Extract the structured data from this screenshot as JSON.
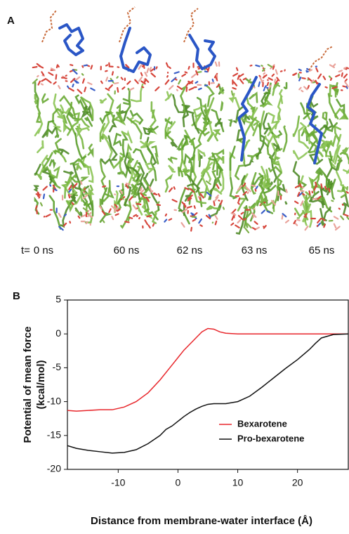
{
  "panel_a": {
    "label": "A",
    "time_prefix": "t=",
    "times": [
      "0 ns",
      "60 ns",
      "62 ns",
      "63 ns",
      "65 ns"
    ]
  },
  "chart_data": {
    "type": "line",
    "panel_label": "B",
    "xlabel": "Distance from membrane-water interface (Å)",
    "ylabel": [
      "Potential of mean force",
      "(kcal/mol)"
    ],
    "xlim": [
      -18.5,
      28.5
    ],
    "xticks": [
      -10,
      0,
      10,
      20
    ],
    "ylim": [
      -20,
      5
    ],
    "yticks": [
      5,
      0,
      -5,
      -10,
      -15,
      -20
    ],
    "legend": "lower right",
    "series": [
      {
        "name": "Bexarotene",
        "color": "#e8262b",
        "x": [
          -18.5,
          -17,
          -15,
          -13,
          -11,
          -9,
          -7,
          -5,
          -3,
          -1,
          1,
          3,
          4,
          5,
          6,
          7,
          8,
          10,
          15,
          20,
          25,
          28.5
        ],
        "values": [
          -11.3,
          -11.4,
          -11.3,
          -11.2,
          -11.2,
          -10.8,
          -10,
          -8.7,
          -6.8,
          -4.6,
          -2.4,
          -0.6,
          0.3,
          0.8,
          0.7,
          0.3,
          0.1,
          0,
          0,
          0,
          0,
          0
        ]
      },
      {
        "name": "Pro-bexarotene",
        "color": "#111111",
        "x": [
          -18.5,
          -17,
          -15,
          -13,
          -11,
          -9,
          -7,
          -5,
          -3,
          -2,
          -1,
          0,
          1,
          2,
          3,
          4,
          5,
          6,
          8,
          10,
          12,
          14,
          16,
          18,
          20,
          22,
          23,
          24,
          26,
          28.5
        ],
        "values": [
          -16.5,
          -16.9,
          -17.2,
          -17.4,
          -17.6,
          -17.5,
          -17.1,
          -16.2,
          -15,
          -14.1,
          -13.6,
          -12.9,
          -12.2,
          -11.6,
          -11.1,
          -10.7,
          -10.4,
          -10.3,
          -10.3,
          -10,
          -9.2,
          -7.9,
          -6.5,
          -5.1,
          -3.8,
          -2.3,
          -1.4,
          -0.6,
          -0.1,
          0
        ]
      }
    ]
  }
}
